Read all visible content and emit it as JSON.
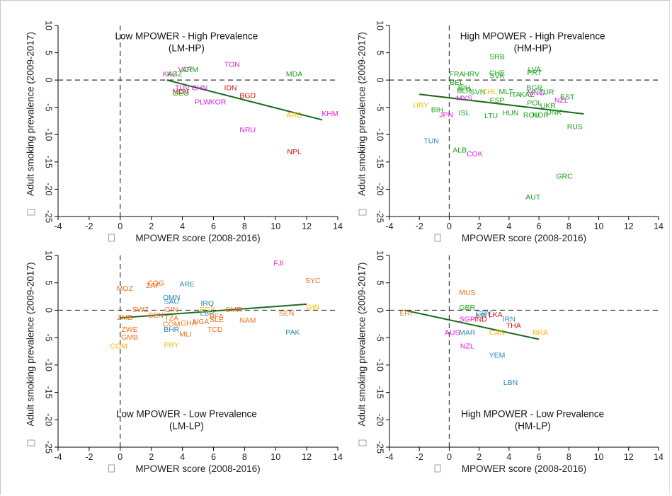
{
  "colors": {
    "green": "#1aa31a",
    "red": "#dd1111",
    "magenta": "#dd22dd",
    "orange": "#f07020",
    "yellow": "#f5b800",
    "blue": "#2d8ab5",
    "trend": "#1b6b1b"
  },
  "chart_data": [
    {
      "type": "scatter",
      "title": "Low MPOWER - High Prevalence",
      "subtitle": "(LM-HP)",
      "xlabel": "MPOWER score (2008-2016)",
      "ylabel": "Adult smoking prevalence (2009-2017)",
      "xlim": [
        -4,
        14
      ],
      "ylim": [
        -25,
        10
      ],
      "xticks": [
        -4,
        -2,
        0,
        2,
        4,
        6,
        8,
        10,
        12,
        14
      ],
      "yticks": [
        10,
        5,
        0,
        -5,
        -10,
        -15,
        -20,
        -25
      ],
      "trendline": [
        [
          3,
          0
        ],
        [
          13,
          -7.3
        ]
      ],
      "points": [
        {
          "label": "TON",
          "x": 7.2,
          "y": 2.8,
          "color": "magenta"
        },
        {
          "label": "MDA",
          "x": 11.2,
          "y": 1.0,
          "color": "green"
        },
        {
          "label": "KHM",
          "x": 13.5,
          "y": -6.2,
          "color": "magenta"
        },
        {
          "label": "ARG",
          "x": 11.2,
          "y": -6.5,
          "color": "yellow"
        },
        {
          "label": "NRU",
          "x": 8.2,
          "y": -9.2,
          "color": "magenta"
        },
        {
          "label": "NPL",
          "x": 11.2,
          "y": -13.2,
          "color": "red"
        },
        {
          "label": "IDN",
          "x": 7.1,
          "y": -1.5,
          "color": "red"
        },
        {
          "label": "BGD",
          "x": 8.2,
          "y": -2.9,
          "color": "red"
        },
        {
          "label": "KAZ",
          "x": 3.2,
          "y": 1.0,
          "color": "magenta"
        },
        {
          "label": "KGZ",
          "x": 3.5,
          "y": 1.0,
          "color": "green"
        },
        {
          "label": "VCT",
          "x": 4.2,
          "y": 1.9,
          "color": "magenta"
        },
        {
          "label": "ARM",
          "x": 4.5,
          "y": 1.8,
          "color": "green"
        },
        {
          "label": "TUV",
          "x": 4.0,
          "y": -1.5,
          "color": "magenta"
        },
        {
          "label": "CHN",
          "x": 5.1,
          "y": -1.5,
          "color": "magenta"
        },
        {
          "label": "MDV",
          "x": 3.9,
          "y": -2.2,
          "color": "red"
        },
        {
          "label": "GEO",
          "x": 3.9,
          "y": -2.5,
          "color": "green"
        },
        {
          "label": "PLW",
          "x": 5.3,
          "y": -4.1,
          "color": "magenta"
        },
        {
          "label": "KOR",
          "x": 6.3,
          "y": -4.1,
          "color": "magenta"
        }
      ]
    },
    {
      "type": "scatter",
      "title": "High MPOWER - High Prevalence",
      "subtitle": "(HM-HP)",
      "xlabel": "MPOWER score (2008-2016)",
      "ylabel": "Adult smoking prevalence (2009-2017)",
      "xlim": [
        -4,
        14
      ],
      "ylim": [
        -25,
        10
      ],
      "xticks": [
        -4,
        -2,
        0,
        2,
        4,
        6,
        8,
        10,
        12,
        14
      ],
      "yticks": [
        10,
        5,
        0,
        -5,
        -10,
        -15,
        -20,
        -25
      ],
      "trendline": [
        [
          -2,
          -2.6
        ],
        [
          9,
          -6.2
        ]
      ],
      "points": [
        {
          "label": "SRB",
          "x": 3.2,
          "y": 4.2,
          "color": "green"
        },
        {
          "label": "LVA",
          "x": 5.7,
          "y": 1.9,
          "color": "green"
        },
        {
          "label": "PRT",
          "x": 5.7,
          "y": 1.3,
          "color": "green"
        },
        {
          "label": "FRA",
          "x": 0.5,
          "y": 1.0,
          "color": "green"
        },
        {
          "label": "HRV",
          "x": 1.5,
          "y": 1.0,
          "color": "green"
        },
        {
          "label": "CHE",
          "x": 3.2,
          "y": 1.2,
          "color": "green"
        },
        {
          "label": "SVK",
          "x": 3.2,
          "y": 0.7,
          "color": "green"
        },
        {
          "label": "BEL",
          "x": 0.5,
          "y": -0.5,
          "color": "green"
        },
        {
          "label": "BGR",
          "x": 5.7,
          "y": -1.5,
          "color": "green"
        },
        {
          "label": "BIH",
          "x": 1.0,
          "y": -1.5,
          "color": "green"
        },
        {
          "label": "BLR",
          "x": 1.0,
          "y": -2.0,
          "color": "green"
        },
        {
          "label": "SVN",
          "x": 1.9,
          "y": -2.3,
          "color": "green"
        },
        {
          "label": "CHL",
          "x": 2.7,
          "y": -2.2,
          "color": "yellow"
        },
        {
          "label": "MLT",
          "x": 3.8,
          "y": -2.2,
          "color": "green"
        },
        {
          "label": "MNG",
          "x": 5.8,
          "y": -2.4,
          "color": "magenta"
        },
        {
          "label": "TUR",
          "x": 6.5,
          "y": -2.3,
          "color": "green"
        },
        {
          "label": "ITA",
          "x": 4.4,
          "y": -2.7,
          "color": "green"
        },
        {
          "label": "KAZ",
          "x": 5.2,
          "y": -2.7,
          "color": "green"
        },
        {
          "label": "EST",
          "x": 7.9,
          "y": -3.2,
          "color": "green"
        },
        {
          "label": "NZL",
          "x": 7.5,
          "y": -3.8,
          "color": "magenta"
        },
        {
          "label": "MYS",
          "x": 1.0,
          "y": -3.4,
          "color": "magenta"
        },
        {
          "label": "ESP",
          "x": 3.2,
          "y": -3.8,
          "color": "green"
        },
        {
          "label": "POL",
          "x": 5.7,
          "y": -4.3,
          "color": "green"
        },
        {
          "label": "UKR",
          "x": 6.6,
          "y": -4.8,
          "color": "green"
        },
        {
          "label": "URY",
          "x": -1.9,
          "y": -4.7,
          "color": "yellow"
        },
        {
          "label": "BIH",
          "x": -0.8,
          "y": -5.5,
          "color": "green"
        },
        {
          "label": "ISL",
          "x": 1.0,
          "y": -6.1,
          "color": "green"
        },
        {
          "label": "JPN",
          "x": -0.2,
          "y": -6.4,
          "color": "magenta"
        },
        {
          "label": "HUN",
          "x": 4.1,
          "y": -6.1,
          "color": "green"
        },
        {
          "label": "LTU",
          "x": 2.8,
          "y": -6.6,
          "color": "green"
        },
        {
          "label": "ROU",
          "x": 5.5,
          "y": -6.5,
          "color": "green"
        },
        {
          "label": "NOR",
          "x": 6.1,
          "y": -6.5,
          "color": "green"
        },
        {
          "label": "DNK",
          "x": 7.0,
          "y": -6.0,
          "color": "green"
        },
        {
          "label": "RUS",
          "x": 8.4,
          "y": -8.6,
          "color": "green"
        },
        {
          "label": "TUN",
          "x": -1.2,
          "y": -11.2,
          "color": "blue"
        },
        {
          "label": "ALB",
          "x": 0.7,
          "y": -12.9,
          "color": "green"
        },
        {
          "label": "COK",
          "x": 1.7,
          "y": -13.6,
          "color": "magenta"
        },
        {
          "label": "GRC",
          "x": 7.7,
          "y": -17.7,
          "color": "green"
        },
        {
          "label": "AUT",
          "x": 5.6,
          "y": -21.5,
          "color": "green"
        }
      ]
    },
    {
      "type": "scatter",
      "title": "Low MPOWER - Low Prevalence",
      "subtitle": "(LM-LP)",
      "xlabel": "MPOWER score (2008-2016)",
      "ylabel": "Adult smoking prevalence (2009-2017)",
      "xlim": [
        -4,
        14
      ],
      "ylim": [
        -25,
        10
      ],
      "xticks": [
        -4,
        -2,
        0,
        2,
        4,
        6,
        8,
        10,
        12,
        14
      ],
      "yticks": [
        10,
        5,
        0,
        -5,
        -10,
        -15,
        -20,
        -25
      ],
      "trendline": [
        [
          0,
          -1.4
        ],
        [
          12,
          1.1
        ]
      ],
      "points": [
        {
          "label": "FJI",
          "x": 10.2,
          "y": 8.5,
          "color": "magenta"
        },
        {
          "label": "SYC",
          "x": 12.4,
          "y": 5.3,
          "color": "orange"
        },
        {
          "label": "COG",
          "x": 2.3,
          "y": 4.9,
          "color": "orange"
        },
        {
          "label": "ZAF",
          "x": 2.1,
          "y": 4.4,
          "color": "orange"
        },
        {
          "label": "ARE",
          "x": 4.3,
          "y": 4.7,
          "color": "blue"
        },
        {
          "label": "MOZ",
          "x": 0.3,
          "y": 3.9,
          "color": "orange"
        },
        {
          "label": "OMN",
          "x": 3.3,
          "y": 2.2,
          "color": "blue"
        },
        {
          "label": "SAU",
          "x": 3.3,
          "y": 1.5,
          "color": "blue"
        },
        {
          "label": "IRQ",
          "x": 5.6,
          "y": 1.2,
          "color": "blue"
        },
        {
          "label": "SWZ",
          "x": 1.3,
          "y": 0.0,
          "color": "orange"
        },
        {
          "label": "GIN",
          "x": 3.3,
          "y": 0.0,
          "color": "orange"
        },
        {
          "label": "EGY",
          "x": 5.6,
          "y": 0.0,
          "color": "yellow"
        },
        {
          "label": "CMR",
          "x": 7.3,
          "y": 0.0,
          "color": "orange"
        },
        {
          "label": "GIN",
          "x": 12.4,
          "y": 0.5,
          "color": "yellow"
        },
        {
          "label": "SEN",
          "x": 10.7,
          "y": -0.6,
          "color": "orange"
        },
        {
          "label": "ZMB",
          "x": 0.3,
          "y": -1.4,
          "color": "orange"
        },
        {
          "label": "BEN",
          "x": 2.3,
          "y": -1.0,
          "color": "orange"
        },
        {
          "label": "TZA",
          "x": 3.3,
          "y": -1.5,
          "color": "orange"
        },
        {
          "label": "LBR",
          "x": 5.6,
          "y": -0.6,
          "color": "blue"
        },
        {
          "label": "BFA",
          "x": 6.2,
          "y": -1.2,
          "color": "orange"
        },
        {
          "label": "SLE",
          "x": 6.2,
          "y": -1.8,
          "color": "orange"
        },
        {
          "label": "NGA",
          "x": 5.2,
          "y": -2.2,
          "color": "orange"
        },
        {
          "label": "GHA",
          "x": 4.4,
          "y": -2.4,
          "color": "orange"
        },
        {
          "label": "COM",
          "x": 3.3,
          "y": -2.6,
          "color": "orange"
        },
        {
          "label": "NAM",
          "x": 8.2,
          "y": -1.9,
          "color": "orange"
        },
        {
          "label": "TCD",
          "x": 6.1,
          "y": -3.6,
          "color": "orange"
        },
        {
          "label": "ZWE",
          "x": 0.6,
          "y": -3.6,
          "color": "orange"
        },
        {
          "label": "BHR",
          "x": 3.3,
          "y": -3.6,
          "color": "blue"
        },
        {
          "label": "MLI",
          "x": 4.2,
          "y": -4.4,
          "color": "orange"
        },
        {
          "label": "GMB",
          "x": 0.6,
          "y": -5.0,
          "color": "orange"
        },
        {
          "label": "PAK",
          "x": 11.1,
          "y": -4.1,
          "color": "blue"
        },
        {
          "label": "COM",
          "x": -0.1,
          "y": -6.6,
          "color": "yellow"
        },
        {
          "label": "PRY",
          "x": 3.3,
          "y": -6.4,
          "color": "yellow"
        }
      ]
    },
    {
      "type": "scatter",
      "title": "High MPOWER - Low Prevalence",
      "subtitle": "(HM-LP)",
      "xlabel": "MPOWER score (2008-2016)",
      "ylabel": "Adult smoking prevalence (2009-2017)",
      "xlim": [
        -4,
        14
      ],
      "ylim": [
        -25,
        10
      ],
      "xticks": [
        -4,
        -2,
        0,
        2,
        4,
        6,
        8,
        10,
        12,
        14
      ],
      "yticks": [
        10,
        5,
        0,
        -5,
        -10,
        -15,
        -20,
        -25
      ],
      "trendline": [
        [
          -3,
          0.0
        ],
        [
          6,
          -5.3
        ]
      ],
      "points": [
        {
          "label": "ERI",
          "x": -2.9,
          "y": -0.6,
          "color": "orange"
        },
        {
          "label": "MUS",
          "x": 1.2,
          "y": 3.1,
          "color": "orange"
        },
        {
          "label": "GBR",
          "x": 1.2,
          "y": 0.4,
          "color": "green"
        },
        {
          "label": "CRY",
          "x": 2.3,
          "y": -0.6,
          "color": "blue"
        },
        {
          "label": "KWT",
          "x": 2.3,
          "y": -1.0,
          "color": "blue"
        },
        {
          "label": "LKA",
          "x": 3.1,
          "y": -0.9,
          "color": "red"
        },
        {
          "label": "SGP",
          "x": 1.2,
          "y": -1.7,
          "color": "magenta"
        },
        {
          "label": "IND",
          "x": 2.1,
          "y": -1.7,
          "color": "red"
        },
        {
          "label": "IRN",
          "x": 4.0,
          "y": -1.7,
          "color": "blue"
        },
        {
          "label": "THA",
          "x": 4.3,
          "y": -2.9,
          "color": "red"
        },
        {
          "label": "BRA",
          "x": 6.1,
          "y": -4.2,
          "color": "yellow"
        },
        {
          "label": "CAN",
          "x": 3.2,
          "y": -4.2,
          "color": "yellow"
        },
        {
          "label": "AUS",
          "x": 0.2,
          "y": -4.2,
          "color": "magenta"
        },
        {
          "label": "MAR",
          "x": 1.2,
          "y": -4.2,
          "color": "blue"
        },
        {
          "label": "NZL",
          "x": 1.2,
          "y": -6.6,
          "color": "magenta"
        },
        {
          "label": "YEM",
          "x": 3.2,
          "y": -8.3,
          "color": "blue"
        },
        {
          "label": "LBN",
          "x": 4.1,
          "y": -13.3,
          "color": "blue"
        }
      ]
    }
  ]
}
